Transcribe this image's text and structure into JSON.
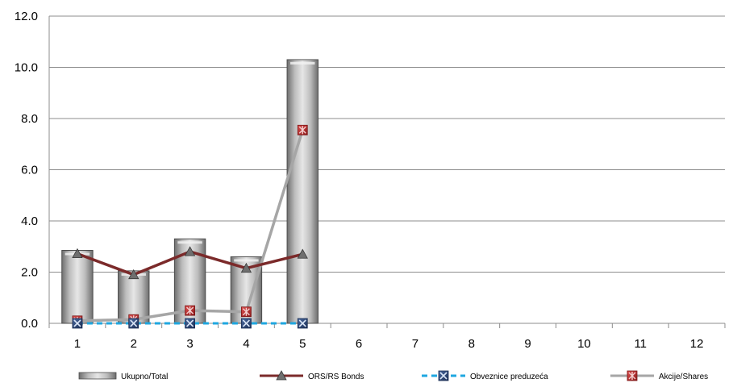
{
  "chart_data": {
    "type": "bar",
    "categories": [
      "1",
      "2",
      "3",
      "4",
      "5",
      "6",
      "7",
      "8",
      "9",
      "10",
      "11",
      "12"
    ],
    "ylim": [
      0,
      12
    ],
    "yticks": [
      "0.0",
      "2.0",
      "4.0",
      "6.0",
      "8.0",
      "10.0",
      "12.0"
    ],
    "grid": true,
    "legend_position": "bottom",
    "series": [
      {
        "name": "Ukupno/Total",
        "kind": "bar",
        "color": "#a6a6a6",
        "values": [
          2.85,
          2.05,
          3.3,
          2.6,
          10.3,
          null,
          null,
          null,
          null,
          null,
          null,
          null
        ]
      },
      {
        "name": "ORS/RS Bonds",
        "kind": "line",
        "color": "#7b2a2a",
        "marker": "triangle",
        "values": [
          2.72,
          1.9,
          2.8,
          2.15,
          2.7,
          null,
          null,
          null,
          null,
          null,
          null,
          null
        ]
      },
      {
        "name": "Obveznice preduzeća",
        "kind": "line",
        "color": "#1fa7e0",
        "dash": true,
        "marker": "x-square",
        "values": [
          0.0,
          0.0,
          0.0,
          0.0,
          0.0,
          null,
          null,
          null,
          null,
          null,
          null,
          null
        ]
      },
      {
        "name": "Akcije/Shares",
        "kind": "line",
        "color": "#a6a6a6",
        "marker": "x-square-red",
        "values": [
          0.1,
          0.15,
          0.5,
          0.45,
          7.55,
          null,
          null,
          null,
          null,
          null,
          null,
          null
        ]
      }
    ]
  }
}
